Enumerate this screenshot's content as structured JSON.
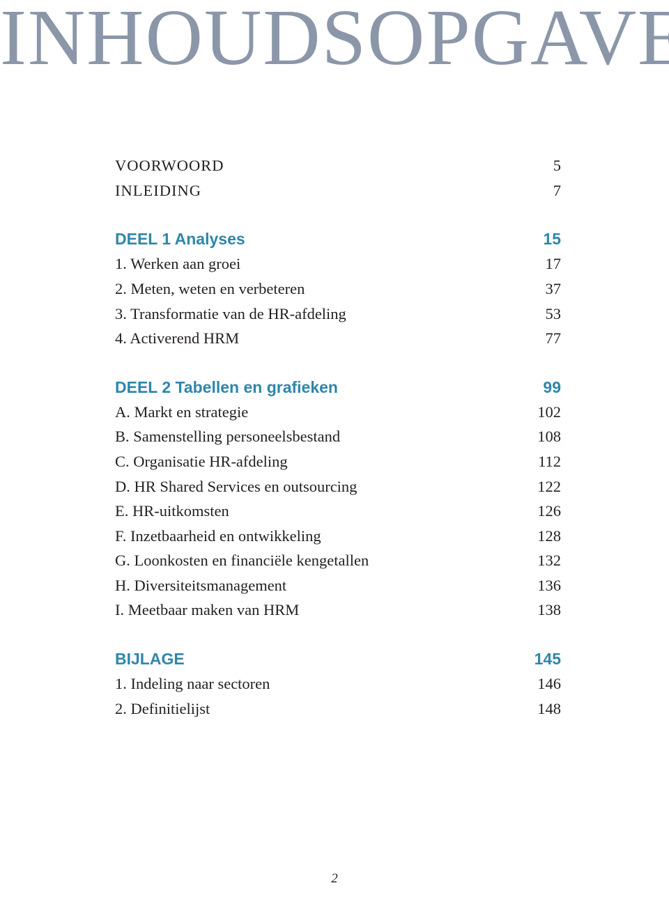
{
  "colors": {
    "title_color": "#8b97a9",
    "section_color": "#2f86aa",
    "body_color": "#231f20",
    "background": "#ffffff"
  },
  "title": "INHOUDSOPGAVE",
  "front_matter": [
    {
      "label": "VOORWOORD",
      "page": "5"
    },
    {
      "label": "INLEIDING",
      "page": "7"
    }
  ],
  "sections": [
    {
      "heading_label": "DEEL 1 Analyses",
      "heading_page": "15",
      "items": [
        {
          "label": "1.  Werken aan groei",
          "page": "17"
        },
        {
          "label": "2.  Meten, weten en verbeteren",
          "page": "37"
        },
        {
          "label": "3.  Transformatie van de HR-afdeling",
          "page": "53"
        },
        {
          "label": "4.  Activerend HRM",
          "page": "77"
        }
      ]
    },
    {
      "heading_label": "DEEL 2 Tabellen en grafieken",
      "heading_page": "99",
      "items": [
        {
          "label": "A.  Markt en strategie",
          "page": "102"
        },
        {
          "label": "B.  Samenstelling personeelsbestand",
          "page": "108"
        },
        {
          "label": "C.  Organisatie HR-afdeling",
          "page": "112"
        },
        {
          "label": "D.  HR Shared Services en outsourcing",
          "page": "122"
        },
        {
          "label": "E.  HR-uitkomsten",
          "page": "126"
        },
        {
          "label": "F.  Inzetbaarheid en ontwikkeling",
          "page": "128"
        },
        {
          "label": "G.  Loonkosten en financiële kengetallen",
          "page": "132"
        },
        {
          "label": "H.  Diversiteitsmanagement",
          "page": "136"
        },
        {
          "label": "I.   Meetbaar maken van HRM",
          "page": "138"
        }
      ]
    },
    {
      "heading_label": "BIJLAGE",
      "heading_page": "145",
      "items": [
        {
          "label": "1.  Indeling naar sectoren",
          "page": "146"
        },
        {
          "label": "2.  Definitielijst",
          "page": "148"
        }
      ]
    }
  ],
  "page_number": "2"
}
